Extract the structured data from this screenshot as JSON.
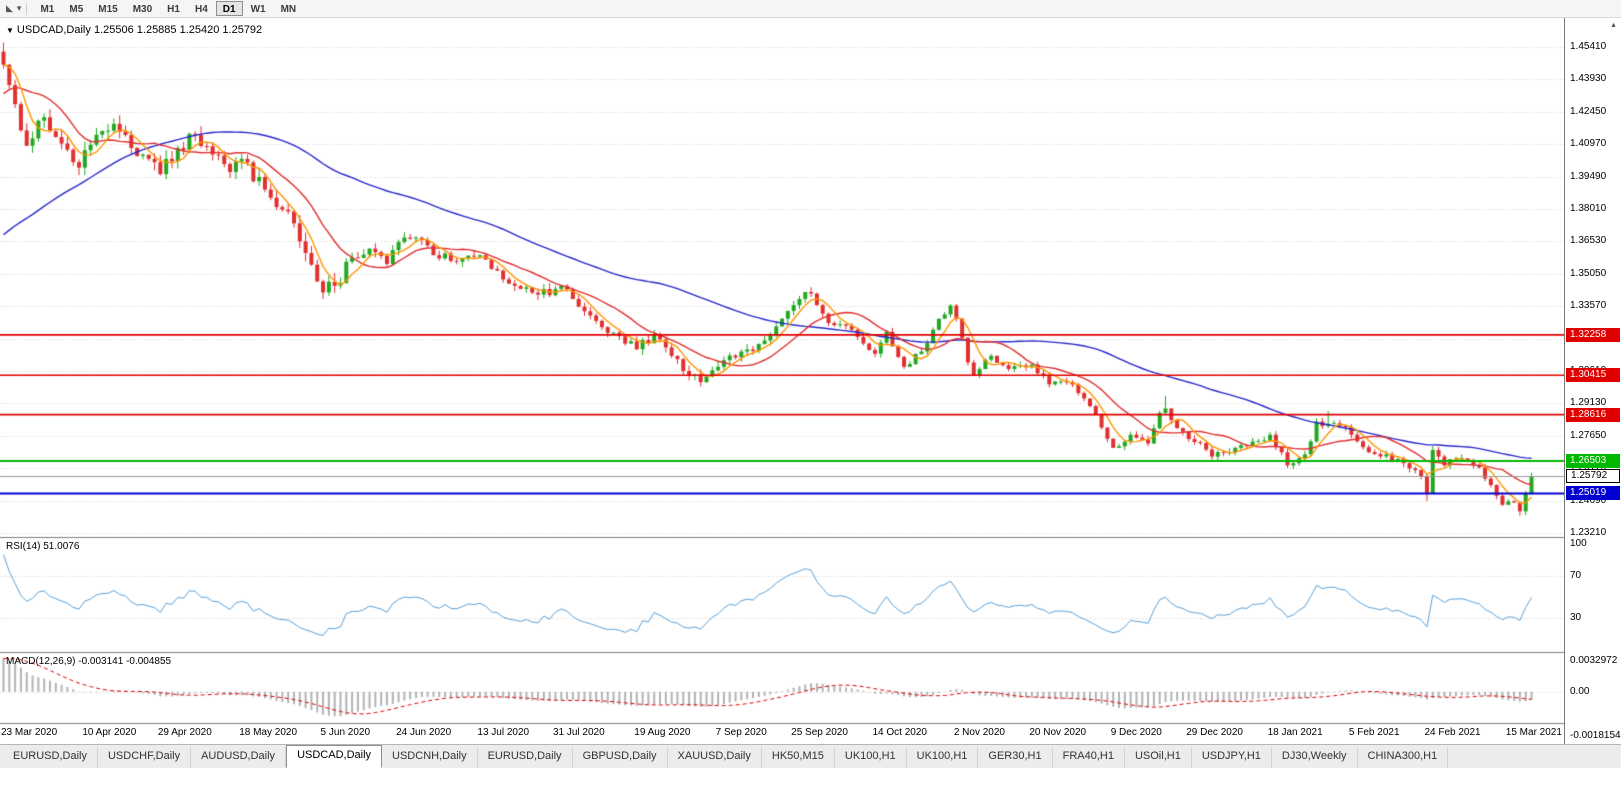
{
  "ui": {
    "icons": {
      "chart_type": "◣",
      "dropdown": "▾",
      "title_marker": "▼",
      "scroll_up": "▴"
    },
    "toolbar": {
      "timeframes": [
        "M1",
        "M5",
        "M15",
        "M30",
        "H1",
        "H4",
        "D1",
        "W1",
        "MN"
      ],
      "active_timeframe": "D1"
    },
    "title": {
      "symbol": "USDCAD,Daily",
      "ohlc": "1.25506 1.25885 1.25420 1.25792"
    },
    "rsi_label": {
      "name": "RSI(14)",
      "value": "51.0076"
    },
    "macd_label": {
      "name": "MACD(12,26,9)",
      "values": "-0.003141 -0.004855"
    },
    "tabs": {
      "items": [
        "EURUSD,Daily",
        "USDCHF,Daily",
        "AUDUSD,Daily",
        "USDCAD,Daily",
        "USDCNH,Daily",
        "EURUSD,Daily",
        "GBPUSD,Daily",
        "XAUUSD,Daily",
        "HK50,M15",
        "UK100,H1",
        "UK100,H1",
        "GER30,H1",
        "FRA40,H1",
        "USOil,H1",
        "USDJPY,H1",
        "DJ30,Weekly",
        "CHINA300,H1"
      ],
      "active_index": 3
    }
  },
  "chart_data": {
    "type": "candlestick",
    "symbol": "USDCAD",
    "timeframe": "Daily",
    "current_ohlc": {
      "open": 1.25506,
      "high": 1.25885,
      "low": 1.2542,
      "close": 1.25792
    },
    "bars": 264,
    "first_open": 1.452,
    "close_path": [
      [
        0,
        1.446
      ],
      [
        2,
        1.428
      ],
      [
        4,
        1.409
      ],
      [
        7,
        1.422
      ],
      [
        10,
        1.41
      ],
      [
        13,
        1.399
      ],
      [
        16,
        1.414
      ],
      [
        19,
        1.419
      ],
      [
        22,
        1.408
      ],
      [
        25,
        1.403
      ],
      [
        27,
        1.396
      ],
      [
        30,
        1.408
      ],
      [
        33,
        1.414
      ],
      [
        36,
        1.405
      ],
      [
        39,
        1.397
      ],
      [
        41,
        1.403
      ],
      [
        45,
        1.389
      ],
      [
        49,
        1.379
      ],
      [
        52,
        1.36
      ],
      [
        55,
        1.342
      ],
      [
        57,
        1.345
      ],
      [
        60,
        1.358
      ],
      [
        63,
        1.362
      ],
      [
        66,
        1.355
      ],
      [
        68,
        1.365
      ],
      [
        71,
        1.367
      ],
      [
        74,
        1.359
      ],
      [
        78,
        1.356
      ],
      [
        82,
        1.359
      ],
      [
        85,
        1.352
      ],
      [
        88,
        1.345
      ],
      [
        92,
        1.341
      ],
      [
        96,
        1.345
      ],
      [
        98,
        1.339
      ],
      [
        102,
        1.329
      ],
      [
        106,
        1.322
      ],
      [
        109,
        1.316
      ],
      [
        112,
        1.323
      ],
      [
        115,
        1.313
      ],
      [
        118,
        1.304
      ],
      [
        120,
        1.301
      ],
      [
        123,
        1.308
      ],
      [
        127,
        1.315
      ],
      [
        131,
        1.32
      ],
      [
        134,
        1.33
      ],
      [
        137,
        1.339
      ],
      [
        139,
        1.3415
      ],
      [
        142,
        1.328
      ],
      [
        146,
        1.325
      ],
      [
        150,
        1.314
      ],
      [
        152,
        1.324
      ],
      [
        155,
        1.308
      ],
      [
        158,
        1.315
      ],
      [
        161,
        1.33
      ],
      [
        163,
        1.336
      ],
      [
        164,
        1.33
      ],
      [
        166,
        1.31
      ],
      [
        167,
        1.304
      ],
      [
        170,
        1.313
      ],
      [
        173,
        1.307
      ],
      [
        177,
        1.309
      ],
      [
        180,
        1.3
      ],
      [
        183,
        1.301
      ],
      [
        185,
        1.296
      ],
      [
        188,
        1.286
      ],
      [
        191,
        1.271
      ],
      [
        194,
        1.277
      ],
      [
        197,
        1.273
      ],
      [
        199,
        1.287
      ],
      [
        200,
        1.289
      ],
      [
        202,
        1.28
      ],
      [
        204,
        1.275
      ],
      [
        206,
        1.2732
      ],
      [
        208,
        1.267
      ],
      [
        211,
        1.269
      ],
      [
        214,
        1.272
      ],
      [
        216,
        1.274
      ],
      [
        218,
        1.277
      ],
      [
        221,
        1.263
      ],
      [
        224,
        1.268
      ],
      [
        226,
        1.283
      ],
      [
        228,
        1.282
      ],
      [
        230,
        1.281
      ],
      [
        232,
        1.277
      ],
      [
        235,
        1.269
      ],
      [
        238,
        1.268
      ],
      [
        241,
        1.264
      ],
      [
        244,
        1.258
      ],
      [
        245,
        1.25
      ],
      [
        246,
        1.27
      ],
      [
        248,
        1.263
      ],
      [
        250,
        1.266
      ],
      [
        252,
        1.265
      ],
      [
        254,
        1.262
      ],
      [
        256,
        1.254
      ],
      [
        258,
        1.245
      ],
      [
        260,
        1.246
      ],
      [
        261,
        1.242
      ],
      [
        262,
        1.25
      ],
      [
        263,
        1.25792
      ]
    ],
    "wick_overrides": [
      [
        0,
        "high",
        1.4545
      ],
      [
        120,
        "low",
        1.299
      ],
      [
        200,
        "high",
        1.2948
      ],
      [
        228,
        "high",
        1.2878
      ],
      [
        245,
        "low",
        1.2468
      ],
      [
        261,
        "low",
        1.24
      ]
    ],
    "price_axis": {
      "labels": [
        "1.45410",
        "1.43930",
        "1.42450",
        "1.40970",
        "1.39490",
        "1.38010",
        "1.36530",
        "1.35050",
        "1.33570",
        "1.32090",
        "1.30610",
        "1.29130",
        "1.27650",
        "1.26170",
        "1.24690",
        "1.23210"
      ],
      "step": 0.0148
    },
    "time_axis": {
      "labels": [
        "23 Mar 2020",
        "10 Apr 2020",
        "29 Apr 2020",
        "18 May 2020",
        "5 Jun 2020",
        "24 Jun 2020",
        "13 Jul 2020",
        "31 Jul 2020",
        "19 Aug 2020",
        "7 Sep 2020",
        "25 Sep 2020",
        "14 Oct 2020",
        "2 Nov 2020",
        "20 Nov 2020",
        "9 Dec 2020",
        "29 Dec 2020",
        "18 Jan 2021",
        "5 Feb 2021",
        "24 Feb 2021",
        "15 Mar 2021"
      ]
    },
    "levels": [
      {
        "price": 1.32258,
        "label": "1.32258",
        "color": "#e00000",
        "kind": "resistance"
      },
      {
        "price": 1.30415,
        "label": "1.30415",
        "color": "#e00000",
        "kind": "resistance"
      },
      {
        "price": 1.28616,
        "label": "1.28616",
        "color": "#e00000",
        "kind": "resistance"
      },
      {
        "price": 1.26503,
        "label": "1.26503",
        "color": "#00b800",
        "kind": "support"
      },
      {
        "price": 1.25019,
        "label": "1.25019",
        "color": "#0000d0",
        "kind": "support"
      }
    ],
    "bid": {
      "price": 1.25792,
      "label": "1.25792"
    },
    "moving_averages": [
      {
        "period": 5,
        "color": "#ff9500"
      },
      {
        "period": 13,
        "color": "#e03030"
      },
      {
        "period": 55,
        "color": "#2828cc"
      }
    ],
    "rsi": {
      "period": 14,
      "current": 51.0076,
      "axis_labels": [
        "100",
        "70",
        "30"
      ],
      "levels": [
        70,
        30
      ],
      "color": "#58a0d8"
    },
    "macd": {
      "fast": 12,
      "slow": 26,
      "signal_period": 9,
      "current_main": -0.003141,
      "current_signal": -0.004855,
      "axis_labels": [
        "0.0032972",
        "0.00",
        "-0.0018154"
      ],
      "hist_color": "#b2b2b2",
      "signal_color": "#e00000"
    },
    "colors": {
      "up": "#22a822",
      "down": "#e03030",
      "grid": "#d4d4d4",
      "bid_line": "#9a9a9a",
      "separator": "#7d7d7d"
    }
  }
}
